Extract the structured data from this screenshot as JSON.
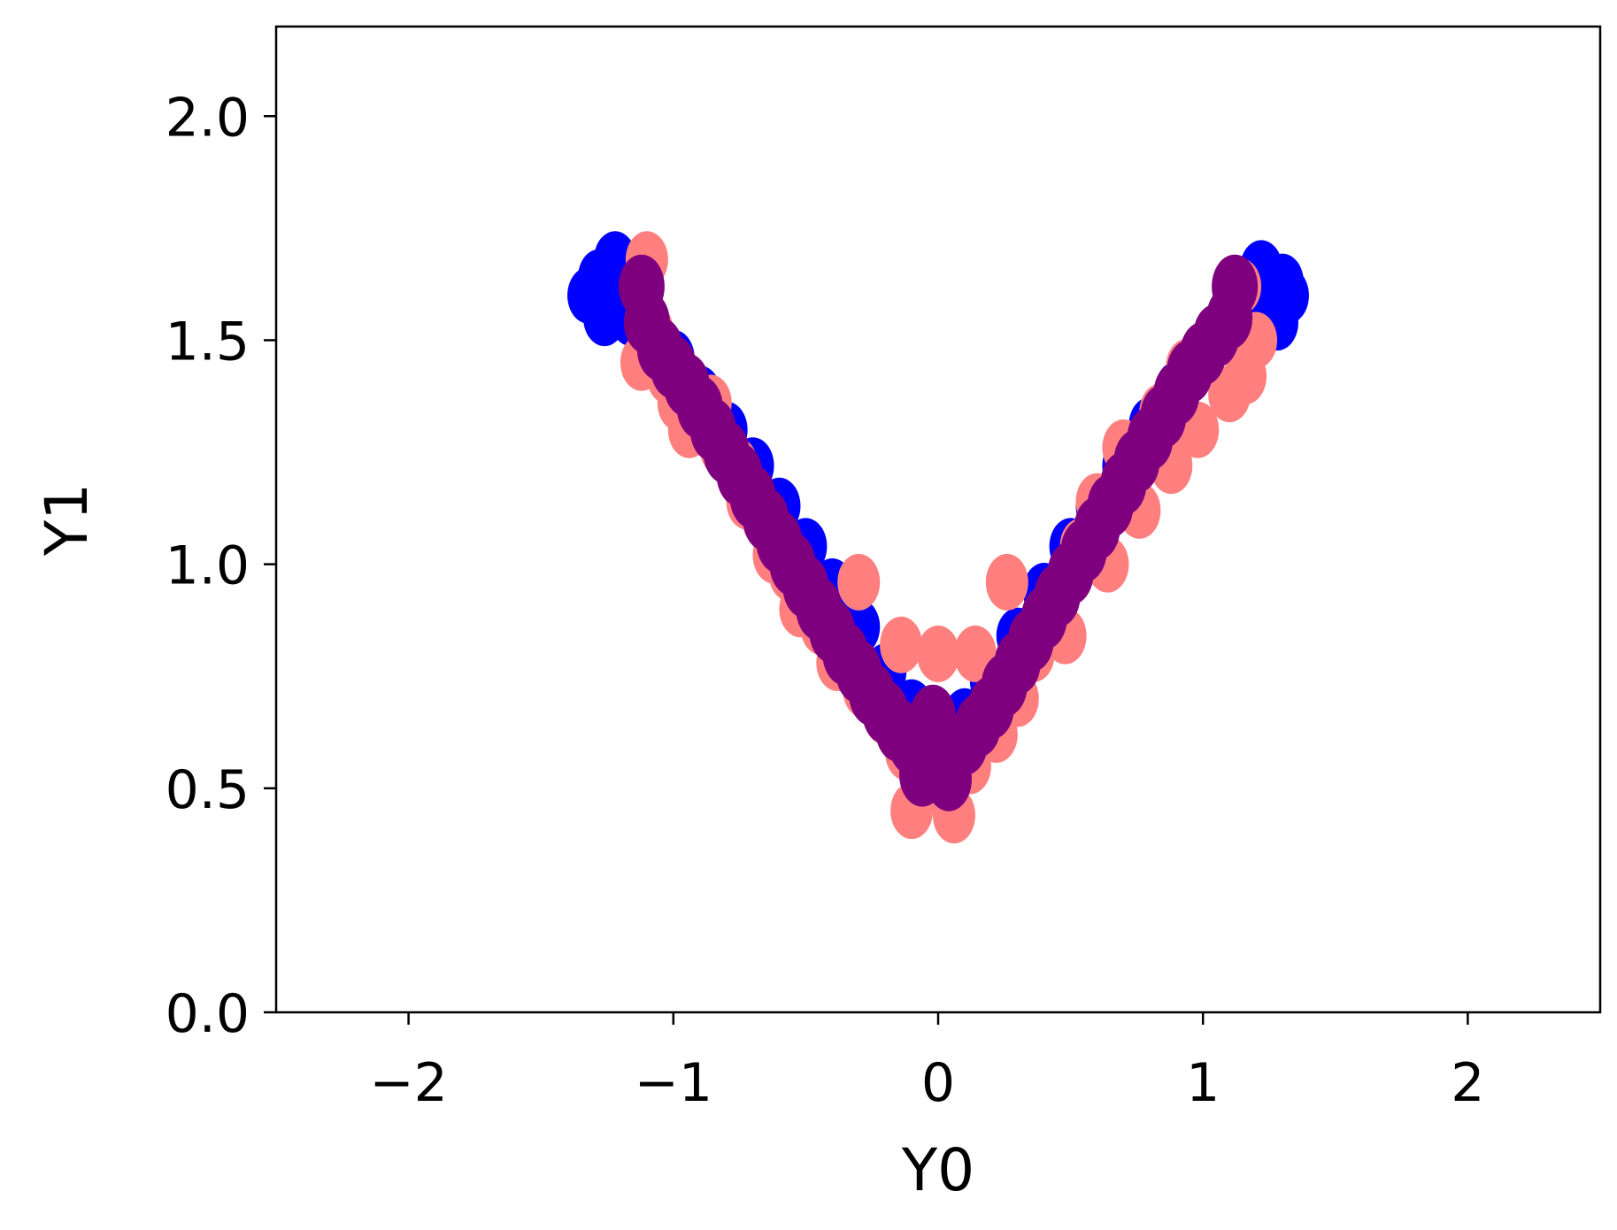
{
  "chart_data": {
    "type": "scatter",
    "title": "",
    "xlabel": "Y0",
    "ylabel": "Y1",
    "xlim": [
      -2.5,
      2.5
    ],
    "ylim": [
      0.0,
      2.2
    ],
    "xticks": [
      -2,
      -1,
      0,
      1,
      2
    ],
    "xtick_labels": [
      "−2",
      "−1",
      "0",
      "1",
      "2"
    ],
    "yticks": [
      0.0,
      0.5,
      1.0,
      1.5,
      2.0
    ],
    "ytick_labels": [
      "0.0",
      "0.5",
      "1.0",
      "1.5",
      "2.0"
    ],
    "grid": false,
    "series": [
      {
        "color": "#0000ff",
        "points": [
          [
            -1.32,
            1.6
          ],
          [
            -1.28,
            1.64
          ],
          [
            -1.26,
            1.55
          ],
          [
            -1.22,
            1.68
          ],
          [
            -1.2,
            1.6
          ],
          [
            -1.16,
            1.55
          ],
          [
            -1.1,
            1.52
          ],
          [
            -1.0,
            1.46
          ],
          [
            -0.9,
            1.38
          ],
          [
            -0.8,
            1.3
          ],
          [
            -0.7,
            1.22
          ],
          [
            -0.6,
            1.13
          ],
          [
            -0.5,
            1.04
          ],
          [
            -0.4,
            0.95
          ],
          [
            -0.3,
            0.86
          ],
          [
            -0.2,
            0.76
          ],
          [
            -0.1,
            0.68
          ],
          [
            0.0,
            0.62
          ],
          [
            0.1,
            0.66
          ],
          [
            0.2,
            0.74
          ],
          [
            0.3,
            0.84
          ],
          [
            0.4,
            0.94
          ],
          [
            0.5,
            1.04
          ],
          [
            0.6,
            1.13
          ],
          [
            0.7,
            1.22
          ],
          [
            0.8,
            1.31
          ],
          [
            0.9,
            1.39
          ],
          [
            1.0,
            1.46
          ],
          [
            1.1,
            1.53
          ],
          [
            1.18,
            1.6
          ],
          [
            1.22,
            1.66
          ],
          [
            1.26,
            1.58
          ],
          [
            1.3,
            1.63
          ],
          [
            1.32,
            1.6
          ],
          [
            1.28,
            1.54
          ]
        ]
      },
      {
        "color": "#ff7f7f",
        "points": [
          [
            -1.1,
            1.68
          ],
          [
            -1.08,
            1.52
          ],
          [
            -1.12,
            1.45
          ],
          [
            -1.02,
            1.42
          ],
          [
            -0.98,
            1.36
          ],
          [
            -0.94,
            1.3
          ],
          [
            -0.86,
            1.36
          ],
          [
            -0.82,
            1.26
          ],
          [
            -0.76,
            1.22
          ],
          [
            -0.72,
            1.14
          ],
          [
            -0.66,
            1.1
          ],
          [
            -0.62,
            1.02
          ],
          [
            -0.56,
            0.98
          ],
          [
            -0.52,
            0.9
          ],
          [
            -0.44,
            0.86
          ],
          [
            -0.38,
            0.78
          ],
          [
            -0.3,
            0.96
          ],
          [
            -0.28,
            0.72
          ],
          [
            -0.2,
            0.66
          ],
          [
            -0.14,
            0.82
          ],
          [
            -0.12,
            0.58
          ],
          [
            -0.06,
            0.5
          ],
          [
            -0.1,
            0.45
          ],
          [
            0.0,
            0.8
          ],
          [
            0.02,
            0.52
          ],
          [
            0.06,
            0.44
          ],
          [
            0.12,
            0.55
          ],
          [
            0.14,
            0.8
          ],
          [
            0.22,
            0.62
          ],
          [
            0.26,
            0.96
          ],
          [
            0.3,
            0.7
          ],
          [
            0.36,
            0.8
          ],
          [
            0.42,
            0.9
          ],
          [
            0.48,
            0.84
          ],
          [
            0.54,
            1.04
          ],
          [
            0.6,
            1.14
          ],
          [
            0.64,
            1.0
          ],
          [
            0.7,
            1.26
          ],
          [
            0.76,
            1.12
          ],
          [
            0.84,
            1.34
          ],
          [
            0.88,
            1.22
          ],
          [
            0.94,
            1.44
          ],
          [
            0.98,
            1.3
          ],
          [
            1.06,
            1.52
          ],
          [
            1.1,
            1.38
          ],
          [
            1.14,
            1.62
          ],
          [
            1.2,
            1.5
          ],
          [
            1.16,
            1.42
          ]
        ]
      },
      {
        "color": "#7f007f",
        "points": [
          [
            -1.12,
            1.62
          ],
          [
            -1.1,
            1.54
          ],
          [
            -1.05,
            1.48
          ],
          [
            -1.0,
            1.44
          ],
          [
            -0.95,
            1.4
          ],
          [
            -0.9,
            1.35
          ],
          [
            -0.85,
            1.3
          ],
          [
            -0.8,
            1.25
          ],
          [
            -0.75,
            1.2
          ],
          [
            -0.7,
            1.15
          ],
          [
            -0.65,
            1.1
          ],
          [
            -0.6,
            1.05
          ],
          [
            -0.55,
            1.0
          ],
          [
            -0.5,
            0.95
          ],
          [
            -0.45,
            0.9
          ],
          [
            -0.4,
            0.85
          ],
          [
            -0.35,
            0.8
          ],
          [
            -0.3,
            0.76
          ],
          [
            -0.25,
            0.71
          ],
          [
            -0.2,
            0.67
          ],
          [
            -0.15,
            0.63
          ],
          [
            -0.1,
            0.6
          ],
          [
            -0.05,
            0.58
          ],
          [
            0.0,
            0.57
          ],
          [
            0.05,
            0.58
          ],
          [
            0.1,
            0.6
          ],
          [
            0.15,
            0.64
          ],
          [
            0.2,
            0.68
          ],
          [
            0.25,
            0.73
          ],
          [
            0.3,
            0.78
          ],
          [
            0.35,
            0.83
          ],
          [
            0.4,
            0.88
          ],
          [
            0.45,
            0.93
          ],
          [
            0.5,
            0.98
          ],
          [
            0.55,
            1.03
          ],
          [
            0.6,
            1.08
          ],
          [
            0.65,
            1.13
          ],
          [
            0.7,
            1.18
          ],
          [
            0.75,
            1.23
          ],
          [
            0.8,
            1.28
          ],
          [
            0.85,
            1.33
          ],
          [
            0.9,
            1.38
          ],
          [
            0.95,
            1.43
          ],
          [
            1.0,
            1.47
          ],
          [
            1.05,
            1.51
          ],
          [
            1.1,
            1.55
          ],
          [
            1.12,
            1.62
          ],
          [
            -0.02,
            0.66
          ],
          [
            0.04,
            0.52
          ],
          [
            -0.06,
            0.53
          ]
        ]
      }
    ]
  }
}
